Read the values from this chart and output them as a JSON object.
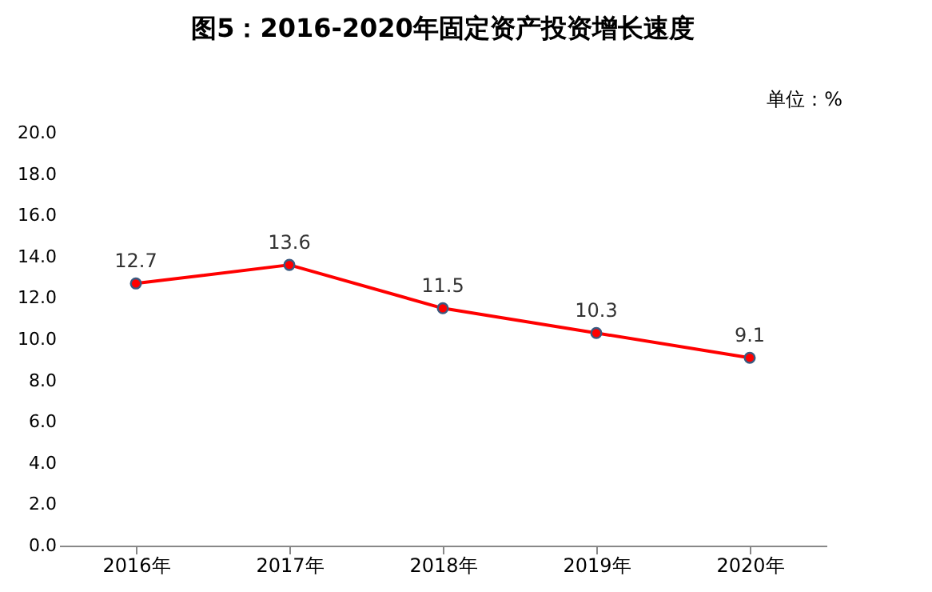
{
  "chart_data": {
    "type": "line",
    "title": "图5：2016-2020年固定资产投资增长速度",
    "annotations": [
      "单位：%"
    ],
    "categories": [
      "2016年",
      "2017年",
      "2018年",
      "2019年",
      "2020年"
    ],
    "series": [
      {
        "color": "#ff0000",
        "values": [
          12.7,
          13.6,
          11.5,
          10.3,
          9.1
        ]
      }
    ],
    "ylim": [
      0,
      20
    ],
    "yticks": [
      {
        "value": 0,
        "label": "0.0"
      },
      {
        "value": 2,
        "label": "2.0"
      },
      {
        "value": 4,
        "label": "4.0"
      },
      {
        "value": 6,
        "label": "6.0"
      },
      {
        "value": 8,
        "label": "8.0"
      },
      {
        "value": 10,
        "label": "10.0"
      },
      {
        "value": 12,
        "label": "12.0"
      },
      {
        "value": 14,
        "label": "14.0"
      },
      {
        "value": 16,
        "label": "16.0"
      },
      {
        "value": 18,
        "label": "18.0"
      },
      {
        "value": 20,
        "label": "20.0"
      }
    ],
    "data_labels": true,
    "marker": "circle",
    "grid": false,
    "legend": false
  }
}
